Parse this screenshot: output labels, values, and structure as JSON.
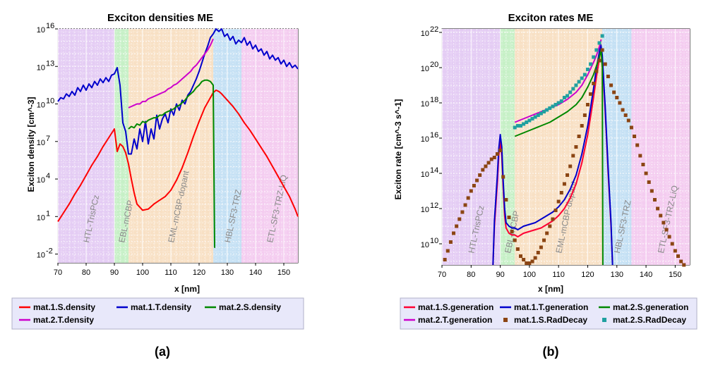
{
  "chart_data": [
    {
      "type": "line",
      "title": "Exciton densities ME",
      "xlabel": "x [nm]",
      "ylabel": "Exciton density [cm^-3]",
      "xlim": [
        70,
        155
      ],
      "ylim_log10": [
        -2.7,
        16
      ],
      "y_scale": "log",
      "grid": true,
      "legend_placement": "bottom",
      "x_ticks": [
        70,
        80,
        90,
        100,
        110,
        120,
        130,
        140,
        150
      ],
      "y_ticks_log10": [
        -2,
        1,
        4,
        7,
        10,
        13,
        16
      ],
      "y_tick_labels": [
        [
          "10",
          "-2"
        ],
        [
          "10",
          "1"
        ],
        [
          "10",
          "4"
        ],
        [
          "10",
          "7"
        ],
        [
          "10",
          "10"
        ],
        [
          "10",
          "13"
        ],
        [
          "10",
          "16"
        ]
      ],
      "regions": [
        {
          "label": "HTL-TrisPCz",
          "x0": 70,
          "x1": 90,
          "color": "#e4ccf4"
        },
        {
          "label": "EBL-mCBP",
          "x0": 90,
          "x1": 95,
          "color": "#c6f0c6"
        },
        {
          "label": "EML-mCBP-dopant",
          "x0": 95,
          "x1": 125,
          "color": "#f8e0c4"
        },
        {
          "label": "HBL-SF3-TRZ",
          "x0": 125,
          "x1": 135,
          "color": "#c4e0f4"
        },
        {
          "label": "ETL-SF3-TRZ-LiQ",
          "x0": 135,
          "x1": 155,
          "color": "#f4ccf0"
        }
      ],
      "series": [
        {
          "name": "mat.1.S.density",
          "color": "#ff0000",
          "marker": "line",
          "x": [
            70,
            72,
            74,
            76,
            78,
            80,
            82,
            84,
            86,
            88,
            90,
            91,
            92,
            93,
            94,
            95,
            96,
            97,
            98,
            100,
            102,
            104,
            106,
            108,
            110,
            112,
            114,
            116,
            118,
            120,
            122,
            124,
            125,
            126,
            127,
            128,
            130,
            132,
            134,
            136,
            138,
            140,
            142,
            144,
            146,
            148,
            150,
            152,
            154,
            155
          ],
          "logy": [
            0.6,
            1.3,
            2.0,
            2.8,
            3.5,
            4.3,
            5.1,
            5.8,
            6.6,
            7.3,
            8.0,
            6.2,
            6.8,
            6.6,
            6.1,
            5.2,
            4.0,
            2.9,
            2.0,
            1.5,
            1.6,
            2.0,
            2.3,
            2.6,
            3.1,
            3.9,
            4.9,
            6.1,
            7.4,
            8.6,
            9.7,
            10.5,
            10.9,
            11.1,
            11.0,
            10.8,
            10.3,
            9.8,
            9.2,
            8.5,
            7.9,
            7.2,
            6.5,
            5.8,
            5.0,
            4.2,
            3.4,
            2.6,
            1.6,
            1.0
          ]
        },
        {
          "name": "mat.1.T.density",
          "color": "#0000cc",
          "marker": "line",
          "x": [
            70,
            71,
            72,
            73,
            74,
            75,
            76,
            77,
            78,
            79,
            80,
            81,
            82,
            83,
            84,
            85,
            86,
            87,
            88,
            89,
            90,
            91,
            92,
            93,
            94,
            95,
            96,
            97,
            98,
            99,
            100,
            101,
            102,
            103,
            104,
            105,
            106,
            107,
            108,
            109,
            110,
            111,
            112,
            113,
            114,
            115,
            116,
            117,
            118,
            119,
            120,
            121,
            122,
            123,
            124,
            125,
            126,
            127,
            128,
            129,
            130,
            131,
            132,
            133,
            134,
            135,
            136,
            137,
            138,
            139,
            140,
            141,
            142,
            143,
            144,
            145,
            146,
            147,
            148,
            149,
            150,
            151,
            152,
            153,
            154,
            155
          ],
          "logy": [
            10.2,
            10.5,
            10.4,
            10.8,
            10.6,
            11.0,
            10.7,
            11.3,
            11.0,
            11.5,
            11.1,
            11.6,
            11.3,
            11.8,
            11.5,
            12.0,
            11.7,
            12.1,
            11.8,
            12.3,
            12.4,
            12.9,
            11.5,
            8.5,
            7.8,
            6.0,
            6.0,
            7.2,
            6.4,
            8.0,
            7.0,
            8.6,
            6.8,
            8.0,
            7.2,
            9.1,
            8.0,
            8.8,
            9.2,
            8.5,
            9.6,
            9.1,
            10.0,
            9.5,
            10.3,
            10.0,
            10.7,
            11.0,
            11.5,
            12.0,
            12.6,
            13.3,
            14.0,
            14.6,
            15.3,
            15.6,
            16.0,
            15.8,
            16.0,
            15.4,
            15.6,
            15.1,
            15.4,
            14.8,
            15.1,
            14.9,
            15.3,
            14.7,
            15.0,
            14.4,
            14.7,
            14.2,
            14.4,
            13.9,
            14.2,
            13.6,
            13.9,
            13.5,
            13.7,
            13.2,
            13.5,
            13.0,
            13.3,
            12.9,
            13.1,
            12.8
          ]
        },
        {
          "name": "mat.2.S.density",
          "color": "#008800",
          "marker": "line",
          "x": [
            95,
            96,
            97,
            98,
            99,
            100,
            101,
            102,
            103,
            104,
            105,
            106,
            107,
            108,
            109,
            110,
            111,
            112,
            113,
            114,
            115,
            116,
            117,
            118,
            119,
            120,
            121,
            122,
            123,
            124,
            125,
            125.5
          ],
          "logy": [
            8.0,
            8.2,
            8.1,
            8.4,
            8.3,
            8.6,
            8.5,
            8.7,
            8.8,
            8.9,
            8.9,
            9.1,
            9.1,
            9.3,
            9.4,
            9.5,
            9.6,
            9.8,
            9.9,
            10.1,
            10.3,
            10.6,
            10.8,
            11.0,
            11.3,
            11.5,
            11.8,
            11.9,
            11.9,
            11.8,
            11.5,
            -1.5
          ]
        },
        {
          "name": "mat.2.T.density",
          "color": "#cc00cc",
          "marker": "line",
          "x": [
            95,
            96,
            97,
            98,
            99,
            100,
            101,
            102,
            103,
            104,
            105,
            106,
            107,
            108,
            109,
            110,
            111,
            112,
            113,
            114,
            115,
            116,
            117,
            118,
            119,
            120,
            121,
            122,
            123,
            124,
            124.6,
            125
          ],
          "logy": [
            9.7,
            9.8,
            9.9,
            10.0,
            10.0,
            10.2,
            10.2,
            10.4,
            10.5,
            10.6,
            10.7,
            10.8,
            10.9,
            11.0,
            11.2,
            11.3,
            11.5,
            11.6,
            11.8,
            12.0,
            12.2,
            12.4,
            12.6,
            12.9,
            13.1,
            13.4,
            13.7,
            14.0,
            14.3,
            14.7,
            15.0,
            15.2
          ]
        }
      ]
    },
    {
      "type": "scatter",
      "title": "Exciton rates ME",
      "xlabel": "x [nm]",
      "ylabel": "Exciton rate [cm^-3 s^-1]",
      "xlim": [
        70,
        155
      ],
      "ylim_log10": [
        8.8,
        22.2
      ],
      "y_scale": "log",
      "grid": true,
      "legend_placement": "bottom",
      "x_ticks": [
        70,
        80,
        90,
        100,
        110,
        120,
        130,
        140,
        150
      ],
      "y_ticks_log10": [
        10,
        12,
        14,
        16,
        18,
        20,
        22
      ],
      "y_tick_labels": [
        [
          "10",
          "10"
        ],
        [
          "10",
          "12"
        ],
        [
          "10",
          "14"
        ],
        [
          "10",
          "16"
        ],
        [
          "10",
          "18"
        ],
        [
          "10",
          "20"
        ],
        [
          "10",
          "22"
        ]
      ],
      "regions": [
        {
          "label": "HTL-TrisPCz",
          "x0": 70,
          "x1": 90,
          "color": "#e4ccf4"
        },
        {
          "label": "EBL-mCBP",
          "x0": 90,
          "x1": 95,
          "color": "#c6f0c6"
        },
        {
          "label": "EML-mCBP-dopant",
          "x0": 95,
          "x1": 125,
          "color": "#f8e0c4"
        },
        {
          "label": "HBL-SF3-TRZ",
          "x0": 125,
          "x1": 135,
          "color": "#c4e0f4"
        },
        {
          "label": "ETL-SF3-TRZ-LiQ",
          "x0": 135,
          "x1": 155,
          "color": "#f4ccf0"
        }
      ],
      "series": [
        {
          "name": "mat.1.S.generation",
          "color": "#ff0033",
          "marker": "line",
          "x": [
            87.5,
            88,
            89,
            89.5,
            90,
            90.5,
            91,
            91.5,
            92,
            93,
            94,
            95,
            96,
            98,
            100,
            102,
            104,
            106,
            108,
            110,
            112,
            114,
            116,
            118,
            120,
            122,
            123,
            124,
            124.5,
            125,
            126,
            127,
            128,
            128.5
          ],
          "logy": [
            8.8,
            11.0,
            13.5,
            15.0,
            15.8,
            15.0,
            13.2,
            11.6,
            10.9,
            10.6,
            10.5,
            10.5,
            10.4,
            10.6,
            10.7,
            10.8,
            10.9,
            11.1,
            11.3,
            11.6,
            12.0,
            12.6,
            13.4,
            14.6,
            16.2,
            18.3,
            19.5,
            20.5,
            21.2,
            20.5,
            17.5,
            14.0,
            11.0,
            8.8
          ]
        },
        {
          "name": "mat.1.T.generation",
          "color": "#0000cc",
          "marker": "line",
          "x": [
            87.5,
            88,
            89,
            89.5,
            90,
            90.5,
            91,
            91.5,
            92,
            93,
            94,
            95,
            96,
            98,
            100,
            102,
            104,
            106,
            108,
            110,
            112,
            114,
            116,
            118,
            120,
            122,
            123,
            124,
            124.5,
            125,
            126,
            127,
            128,
            128.5
          ],
          "logy": [
            8.8,
            11.3,
            13.9,
            15.4,
            16.2,
            15.5,
            13.6,
            12.0,
            11.2,
            11.0,
            10.9,
            10.9,
            10.8,
            11.0,
            11.1,
            11.2,
            11.4,
            11.6,
            11.8,
            12.1,
            12.5,
            13.1,
            13.9,
            15.1,
            16.7,
            18.8,
            20.0,
            20.9,
            21.3,
            20.7,
            17.8,
            14.3,
            11.2,
            8.8
          ]
        },
        {
          "name": "mat.2.S.generation",
          "color": "#008800",
          "marker": "line",
          "x": [
            95,
            98,
            101,
            104,
            107,
            110,
            113,
            116,
            118,
            120,
            122,
            123,
            124,
            124.6,
            125,
            125.2
          ],
          "logy": [
            16.1,
            16.3,
            16.5,
            16.7,
            16.9,
            17.2,
            17.5,
            17.9,
            18.3,
            18.9,
            19.6,
            20.1,
            20.6,
            21.0,
            20.0,
            8.8
          ]
        },
        {
          "name": "mat.2.T.generation",
          "color": "#cc00cc",
          "marker": "line",
          "x": [
            95,
            98,
            101,
            104,
            107,
            110,
            113,
            116,
            118,
            120,
            122,
            123,
            124,
            124.6
          ],
          "logy": [
            16.9,
            17.1,
            17.3,
            17.5,
            17.7,
            17.9,
            18.2,
            18.6,
            19.0,
            19.6,
            20.3,
            20.7,
            21.2,
            21.6
          ]
        },
        {
          "name": "mat.1.S.RadDecay",
          "color": "#8b4513",
          "marker": "square",
          "x": [
            71,
            72,
            73,
            74,
            75,
            76,
            77,
            78,
            79,
            80,
            81,
            82,
            83,
            84,
            85,
            86,
            87,
            88,
            89,
            90,
            91,
            92,
            93,
            94,
            95,
            96,
            97,
            98,
            99,
            100,
            101,
            102,
            103,
            104,
            105,
            106,
            107,
            108,
            109,
            110,
            111,
            112,
            113,
            114,
            115,
            116,
            117,
            118,
            119,
            120,
            121,
            122,
            123,
            124,
            125,
            126,
            127,
            128,
            129,
            130,
            131,
            132,
            133,
            134,
            135,
            136,
            137,
            138,
            139,
            140,
            141,
            142,
            143,
            144,
            145,
            146,
            147,
            148,
            149,
            150,
            151,
            152,
            153
          ],
          "logy": [
            9.1,
            9.6,
            10.1,
            10.6,
            11.0,
            11.4,
            11.8,
            12.2,
            12.6,
            13.0,
            13.3,
            13.6,
            13.9,
            14.2,
            14.4,
            14.6,
            14.8,
            14.9,
            15.1,
            15.3,
            13.8,
            12.5,
            11.5,
            10.7,
            10.2,
            9.7,
            9.3,
            9.1,
            8.9,
            8.9,
            9.0,
            9.2,
            9.5,
            9.8,
            10.2,
            10.6,
            11.0,
            11.4,
            11.9,
            12.4,
            12.9,
            13.4,
            13.9,
            14.4,
            15.0,
            15.5,
            16.1,
            16.7,
            17.3,
            17.9,
            18.5,
            19.1,
            19.8,
            20.4,
            21.0,
            20.2,
            19.5,
            19.0,
            18.6,
            18.3,
            18.0,
            17.6,
            17.3,
            17.0,
            16.6,
            16.1,
            15.6,
            15.0,
            14.5,
            14.0,
            13.5,
            13.0,
            12.5,
            12.0,
            11.6,
            11.2,
            10.8,
            10.4,
            10.0,
            9.6,
            9.3,
            9.0,
            8.8
          ]
        },
        {
          "name": "mat.2.S.RadDecay",
          "color": "#20a0a0",
          "marker": "square",
          "x": [
            95,
            96,
            97,
            98,
            99,
            100,
            101,
            102,
            103,
            104,
            105,
            106,
            107,
            108,
            109,
            110,
            111,
            112,
            113,
            114,
            115,
            116,
            117,
            118,
            119,
            120,
            121,
            122,
            123,
            124,
            125
          ],
          "logy": [
            16.6,
            16.7,
            16.7,
            16.8,
            16.9,
            17.0,
            17.1,
            17.2,
            17.3,
            17.4,
            17.5,
            17.6,
            17.7,
            17.8,
            17.9,
            18.0,
            18.1,
            18.3,
            18.4,
            18.6,
            18.8,
            19.0,
            19.2,
            19.4,
            19.6,
            19.9,
            20.2,
            20.6,
            21.0,
            21.4,
            21.8
          ]
        }
      ]
    }
  ],
  "panels": [
    {
      "label": "(a)"
    },
    {
      "label": "(b)"
    }
  ]
}
